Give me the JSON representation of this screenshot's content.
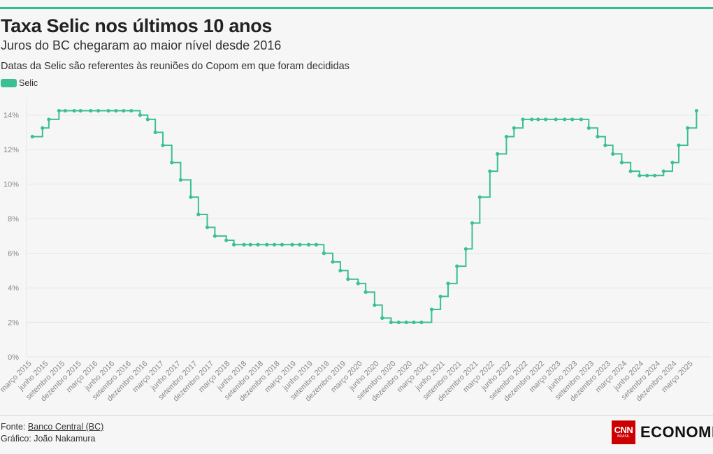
{
  "header": {
    "title": "Taxa Selic nos últimos 10 anos",
    "subtitle": "Juros do BC chegaram ao maior nível desde 2016",
    "note": "Datas da Selic são referentes às reuniões do Copom em que foram decididas"
  },
  "footer": {
    "source_prefix": "Fonte: ",
    "source_link": "Banco Central (BC)",
    "credit": "Gráfico: João Nakamura",
    "logo_cnn": "CNN",
    "logo_brasil": "BRASIL",
    "logo_word": "ECONOMIA"
  },
  "colors": {
    "accent": "#3bbf95",
    "grid": "#e6e6e6",
    "rule": "#2ebf91"
  },
  "chart_data": {
    "type": "line",
    "step": true,
    "markers": true,
    "grid": true,
    "legend_position": "top-left",
    "ylim": [
      0,
      15
    ],
    "yticks": [
      0,
      2,
      4,
      6,
      8,
      10,
      12,
      14
    ],
    "ytick_suffix": "%",
    "series": [
      {
        "name": "Selic",
        "values": [
          {
            "x": "2015-03-04",
            "y": 12.75
          },
          {
            "x": "2015-04-29",
            "y": 13.25
          },
          {
            "x": "2015-06-03",
            "y": 13.75
          },
          {
            "x": "2015-07-29",
            "y": 14.25
          },
          {
            "x": "2015-09-02",
            "y": 14.25
          },
          {
            "x": "2015-10-21",
            "y": 14.25
          },
          {
            "x": "2015-11-25",
            "y": 14.25
          },
          {
            "x": "2016-01-20",
            "y": 14.25
          },
          {
            "x": "2016-03-02",
            "y": 14.25
          },
          {
            "x": "2016-04-27",
            "y": 14.25
          },
          {
            "x": "2016-06-08",
            "y": 14.25
          },
          {
            "x": "2016-07-20",
            "y": 14.25
          },
          {
            "x": "2016-08-31",
            "y": 14.25
          },
          {
            "x": "2016-10-19",
            "y": 14.0
          },
          {
            "x": "2016-11-30",
            "y": 13.75
          },
          {
            "x": "2017-01-11",
            "y": 13.0
          },
          {
            "x": "2017-02-22",
            "y": 12.25
          },
          {
            "x": "2017-04-12",
            "y": 11.25
          },
          {
            "x": "2017-05-31",
            "y": 10.25
          },
          {
            "x": "2017-07-26",
            "y": 9.25
          },
          {
            "x": "2017-09-06",
            "y": 8.25
          },
          {
            "x": "2017-10-25",
            "y": 7.5
          },
          {
            "x": "2017-12-06",
            "y": 7.0
          },
          {
            "x": "2018-02-07",
            "y": 6.75
          },
          {
            "x": "2018-03-21",
            "y": 6.5
          },
          {
            "x": "2018-05-16",
            "y": 6.5
          },
          {
            "x": "2018-06-20",
            "y": 6.5
          },
          {
            "x": "2018-08-01",
            "y": 6.5
          },
          {
            "x": "2018-09-19",
            "y": 6.5
          },
          {
            "x": "2018-10-31",
            "y": 6.5
          },
          {
            "x": "2018-12-12",
            "y": 6.5
          },
          {
            "x": "2019-02-06",
            "y": 6.5
          },
          {
            "x": "2019-03-20",
            "y": 6.5
          },
          {
            "x": "2019-05-08",
            "y": 6.5
          },
          {
            "x": "2019-06-19",
            "y": 6.5
          },
          {
            "x": "2019-07-31",
            "y": 6.0
          },
          {
            "x": "2019-09-18",
            "y": 5.5
          },
          {
            "x": "2019-10-30",
            "y": 5.0
          },
          {
            "x": "2019-12-11",
            "y": 4.5
          },
          {
            "x": "2020-02-05",
            "y": 4.25
          },
          {
            "x": "2020-03-18",
            "y": 3.75
          },
          {
            "x": "2020-05-06",
            "y": 3.0
          },
          {
            "x": "2020-06-17",
            "y": 2.25
          },
          {
            "x": "2020-08-05",
            "y": 2.0
          },
          {
            "x": "2020-09-16",
            "y": 2.0
          },
          {
            "x": "2020-10-28",
            "y": 2.0
          },
          {
            "x": "2020-12-09",
            "y": 2.0
          },
          {
            "x": "2021-01-20",
            "y": 2.0
          },
          {
            "x": "2021-03-17",
            "y": 2.75
          },
          {
            "x": "2021-05-05",
            "y": 3.5
          },
          {
            "x": "2021-06-16",
            "y": 4.25
          },
          {
            "x": "2021-08-04",
            "y": 5.25
          },
          {
            "x": "2021-09-22",
            "y": 6.25
          },
          {
            "x": "2021-10-27",
            "y": 7.75
          },
          {
            "x": "2021-12-08",
            "y": 9.25
          },
          {
            "x": "2022-02-02",
            "y": 10.75
          },
          {
            "x": "2022-03-16",
            "y": 11.75
          },
          {
            "x": "2022-05-04",
            "y": 12.75
          },
          {
            "x": "2022-06-15",
            "y": 13.25
          },
          {
            "x": "2022-08-03",
            "y": 13.75
          },
          {
            "x": "2022-09-21",
            "y": 13.75
          },
          {
            "x": "2022-10-26",
            "y": 13.75
          },
          {
            "x": "2022-12-07",
            "y": 13.75
          },
          {
            "x": "2023-02-01",
            "y": 13.75
          },
          {
            "x": "2023-03-22",
            "y": 13.75
          },
          {
            "x": "2023-05-03",
            "y": 13.75
          },
          {
            "x": "2023-06-21",
            "y": 13.75
          },
          {
            "x": "2023-08-02",
            "y": 13.25
          },
          {
            "x": "2023-09-20",
            "y": 12.75
          },
          {
            "x": "2023-11-01",
            "y": 12.25
          },
          {
            "x": "2023-12-13",
            "y": 11.75
          },
          {
            "x": "2024-01-31",
            "y": 11.25
          },
          {
            "x": "2024-03-20",
            "y": 10.75
          },
          {
            "x": "2024-05-08",
            "y": 10.5
          },
          {
            "x": "2024-06-19",
            "y": 10.5
          },
          {
            "x": "2024-07-31",
            "y": 10.5
          },
          {
            "x": "2024-09-18",
            "y": 10.75
          },
          {
            "x": "2024-11-06",
            "y": 11.25
          },
          {
            "x": "2024-12-11",
            "y": 12.25
          },
          {
            "x": "2025-01-29",
            "y": 13.25
          },
          {
            "x": "2025-03-19",
            "y": 14.25
          }
        ]
      }
    ],
    "xticks": [
      {
        "date": "2015-03-01",
        "label": "março 2015"
      },
      {
        "date": "2015-06-01",
        "label": "junho 2015"
      },
      {
        "date": "2015-09-01",
        "label": "setembro 2015"
      },
      {
        "date": "2015-12-01",
        "label": "dezembro 2015"
      },
      {
        "date": "2016-03-01",
        "label": "março 2016"
      },
      {
        "date": "2016-06-01",
        "label": "junho 2016"
      },
      {
        "date": "2016-09-01",
        "label": "setembro 2016"
      },
      {
        "date": "2016-12-01",
        "label": "dezembro 2016"
      },
      {
        "date": "2017-03-01",
        "label": "março 2017"
      },
      {
        "date": "2017-06-01",
        "label": "junho 2017"
      },
      {
        "date": "2017-09-01",
        "label": "setembro 2017"
      },
      {
        "date": "2017-12-01",
        "label": "dezembro 2017"
      },
      {
        "date": "2018-03-01",
        "label": "março 2018"
      },
      {
        "date": "2018-06-01",
        "label": "junho 2018"
      },
      {
        "date": "2018-09-01",
        "label": "setembro 2018"
      },
      {
        "date": "2018-12-01",
        "label": "dezembro 2018"
      },
      {
        "date": "2019-03-01",
        "label": "março 2019"
      },
      {
        "date": "2019-06-01",
        "label": "junho 2019"
      },
      {
        "date": "2019-09-01",
        "label": "setembro 2019"
      },
      {
        "date": "2019-12-01",
        "label": "dezembro 2019"
      },
      {
        "date": "2020-03-01",
        "label": "março 2020"
      },
      {
        "date": "2020-06-01",
        "label": "junho 2020"
      },
      {
        "date": "2020-09-01",
        "label": "setembro 2020"
      },
      {
        "date": "2020-12-01",
        "label": "dezembro 2020"
      },
      {
        "date": "2021-03-01",
        "label": "março 2021"
      },
      {
        "date": "2021-06-01",
        "label": "junho 2021"
      },
      {
        "date": "2021-09-01",
        "label": "setembro 2021"
      },
      {
        "date": "2021-12-01",
        "label": "dezembro 2021"
      },
      {
        "date": "2022-03-01",
        "label": "março 2022"
      },
      {
        "date": "2022-06-01",
        "label": "junho 2022"
      },
      {
        "date": "2022-09-01",
        "label": "setembro 2022"
      },
      {
        "date": "2022-12-01",
        "label": "dezembro 2022"
      },
      {
        "date": "2023-03-01",
        "label": "março 2023"
      },
      {
        "date": "2023-06-01",
        "label": "junho 2023"
      },
      {
        "date": "2023-09-01",
        "label": "setembro 2023"
      },
      {
        "date": "2023-12-01",
        "label": "dezembro 2023"
      },
      {
        "date": "2024-03-01",
        "label": "março 2024"
      },
      {
        "date": "2024-06-01",
        "label": "junho 2024"
      },
      {
        "date": "2024-09-01",
        "label": "setembro 2024"
      },
      {
        "date": "2024-12-01",
        "label": "dezembro 2024"
      },
      {
        "date": "2025-03-01",
        "label": "março 2025"
      }
    ]
  }
}
